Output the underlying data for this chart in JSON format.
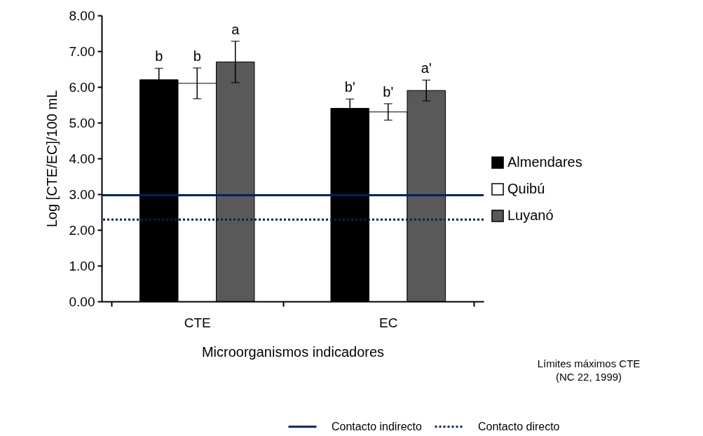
{
  "chart_data": {
    "type": "bar",
    "xlabel": "Microorganismos indicadores",
    "ylabel": "Log [CTE/EC]/100 mL",
    "categories": [
      "CTE",
      "EC"
    ],
    "series": [
      {
        "name": "Almendares",
        "color": "#000000",
        "values": [
          6.2,
          5.4
        ],
        "errors": [
          0.32,
          0.26
        ],
        "value_labels": [
          "b",
          "b'"
        ]
      },
      {
        "name": "Quibú",
        "color": "#ffffff",
        "values": [
          6.1,
          5.3
        ],
        "errors": [
          0.43,
          0.23
        ],
        "value_labels": [
          "b",
          "b'"
        ]
      },
      {
        "name": "Luyanó",
        "color": "#595959",
        "values": [
          6.7,
          5.9
        ],
        "errors": [
          0.58,
          0.29
        ],
        "value_labels": [
          "a",
          "a'"
        ]
      }
    ],
    "ylim": [
      0,
      8
    ],
    "yticks": [
      {
        "value": 0,
        "label": "0.00"
      },
      {
        "value": 1,
        "label": "1.00"
      },
      {
        "value": 2,
        "label": "2.00"
      },
      {
        "value": 3,
        "label": "3.00"
      },
      {
        "value": 4,
        "label": "4.00"
      },
      {
        "value": 5,
        "label": "5.00"
      },
      {
        "value": 6,
        "label": "6.00"
      },
      {
        "value": 7,
        "label": "7.00"
      },
      {
        "value": 8,
        "label": "8.00"
      }
    ],
    "ref_lines": [
      {
        "axis": "y",
        "value": 2.97,
        "label": "Contacto indirecto",
        "color": "#002060",
        "line_style": "solid"
      },
      {
        "axis": "y",
        "value": 2.29,
        "label": "Contacto directo",
        "color": "#002060",
        "line_style": "dotted"
      }
    ],
    "annotations": [
      "Límites máximos   CTE\n(NC 22, 1999)"
    ],
    "grid": false,
    "legend": "right"
  }
}
